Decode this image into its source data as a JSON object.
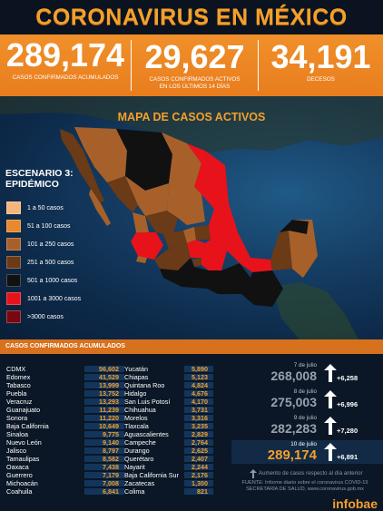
{
  "header": {
    "title": "CORONAVIRUS EN MÉXICO"
  },
  "stats": [
    {
      "value": "289,174",
      "label": "CASOS CONFIRMADOS ACUMULADOS"
    },
    {
      "value": "29,627",
      "label": "CASOS CONFIRMADOS ACTIVOS EN LOS ÚLTIMOS 14 DÍAS"
    },
    {
      "value": "34,191",
      "label": "DECESOS"
    }
  ],
  "map": {
    "title": "MAPA DE CASOS ACTIVOS",
    "scenario_title": "ESCENARIO 3:",
    "scenario_subtitle": "EPIDÉMICO",
    "legend": [
      {
        "label": "1 a 50 casos",
        "color": "#f3b77e"
      },
      {
        "label": "51 a 100 casos",
        "color": "#e8882f"
      },
      {
        "label": "101 a 250 casos",
        "color": "#a8602a"
      },
      {
        "label": "251 a 500 casos",
        "color": "#6b3a16"
      },
      {
        "label": "501 a 1000 casos",
        "color": "#111111"
      },
      {
        "label": "1001 a 3000 casos",
        "color": "#e8121b"
      },
      {
        "label": ">3000 casos",
        "color": "#7a0710"
      }
    ]
  },
  "table": {
    "header": "CASOS CONFIRMADOS ACUMULADOS",
    "col1": [
      {
        "name": "CDMX",
        "value": "56,602"
      },
      {
        "name": "Edomex",
        "value": "41,529"
      },
      {
        "name": "Tabasco",
        "value": "13,999"
      },
      {
        "name": "Puebla",
        "value": "13,752"
      },
      {
        "name": "Veracruz",
        "value": "13,293"
      },
      {
        "name": "Guanajuato",
        "value": "11,239"
      },
      {
        "name": "Sonora",
        "value": "11,220"
      },
      {
        "name": "Baja California",
        "value": "10,649"
      },
      {
        "name": "Sinaloa",
        "value": "9,775"
      },
      {
        "name": "Nuevo León",
        "value": "9,140"
      },
      {
        "name": "Jalisco",
        "value": "8,797"
      },
      {
        "name": "Tamaulipas",
        "value": "8,582"
      },
      {
        "name": "Oaxaca",
        "value": "7,438"
      },
      {
        "name": "Guerrero",
        "value": "7,179"
      },
      {
        "name": "Michoacán",
        "value": "7,008"
      },
      {
        "name": "Coahuila",
        "value": "6,841"
      }
    ],
    "col2": [
      {
        "name": "Yucatán",
        "value": "5,890"
      },
      {
        "name": "Chiapas",
        "value": "5,123"
      },
      {
        "name": "Quintana Roo",
        "value": "4,824"
      },
      {
        "name": "Hidalgo",
        "value": "4,676"
      },
      {
        "name": "San Luis Potosí",
        "value": "4,170"
      },
      {
        "name": "Chihuahua",
        "value": "3,731"
      },
      {
        "name": "Morelos",
        "value": "3,316"
      },
      {
        "name": "Tlaxcala",
        "value": "3,235"
      },
      {
        "name": "Aguascalientes",
        "value": "2,829"
      },
      {
        "name": "Campeche",
        "value": "2,764"
      },
      {
        "name": "Durango",
        "value": "2,625"
      },
      {
        "name": "Querétaro",
        "value": "2,407"
      },
      {
        "name": "Nayarit",
        "value": "2,244"
      },
      {
        "name": "Baja California Sur",
        "value": "2,176"
      },
      {
        "name": "Zacatecas",
        "value": "1,300"
      },
      {
        "name": "Colima",
        "value": "821"
      }
    ]
  },
  "daily": [
    {
      "date": "7 de julio",
      "count": "268,008",
      "increase": "+6,258"
    },
    {
      "date": "8 de julio",
      "count": "275,003",
      "increase": "+6,996"
    },
    {
      "date": "9 de julio",
      "count": "282,283",
      "increase": "+7,280"
    },
    {
      "date": "10 de julio",
      "count": "289,174",
      "increase": "+6,891"
    }
  ],
  "footer": {
    "note": "Aumento de casos respecto al día anterior",
    "source": "FUENTE: Informe diario sobre el coronavirus COVID-19 SECRETARÍA DE SALUD, www.coronavirus.gob.mx",
    "brand": "infobae"
  }
}
